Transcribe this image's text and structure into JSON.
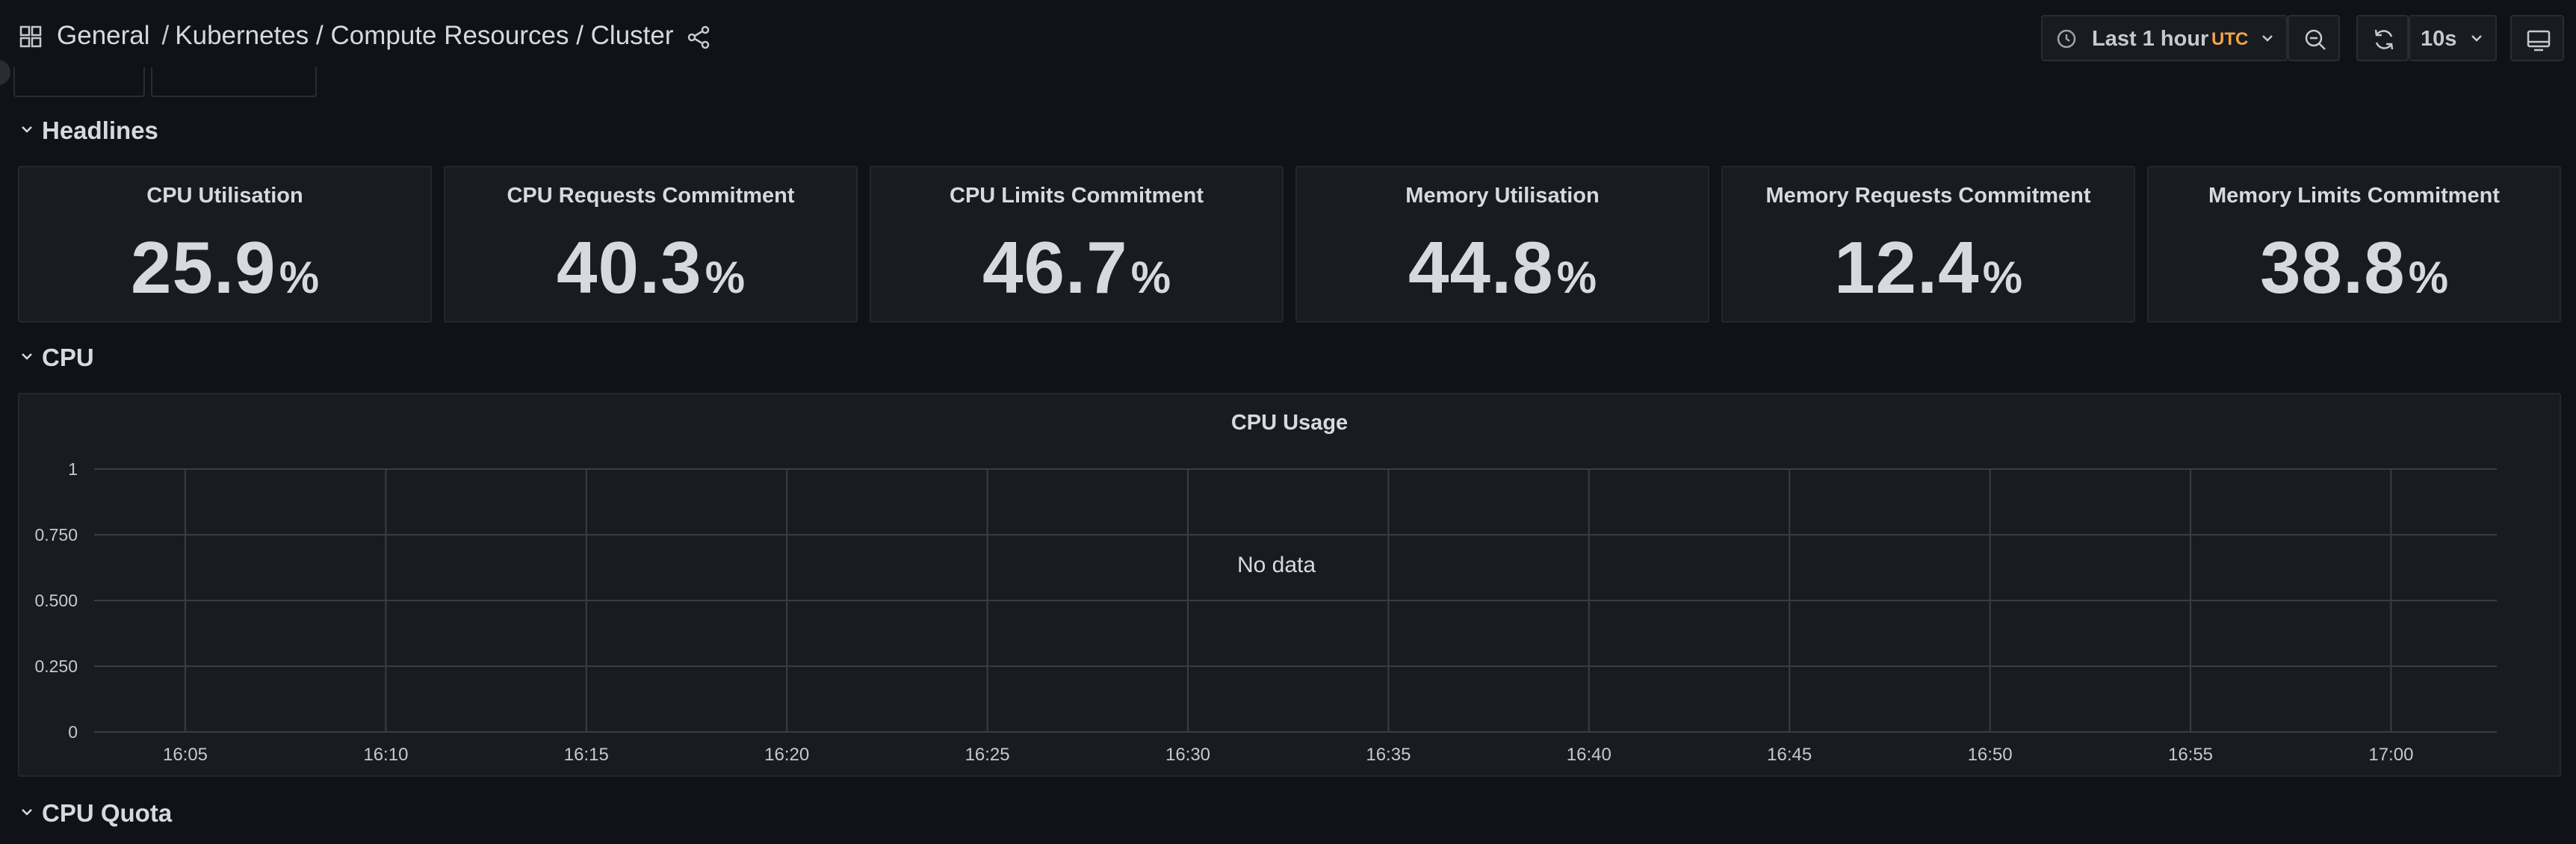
{
  "breadcrumb": {
    "folder": "General",
    "separator": "/",
    "title": "Kubernetes / Compute Resources / Cluster"
  },
  "toolbar": {
    "time_range_label": "Last 1 hour",
    "timezone": "UTC",
    "refresh_interval": "10s",
    "icons": [
      "apps-icon",
      "share-icon",
      "clock-icon",
      "zoom-out-icon",
      "refresh-icon",
      "kiosk-icon"
    ]
  },
  "colors": {
    "background": "#111217",
    "panel": "#181b1f",
    "text": "#d8d9e0",
    "accent_timezone": "#f5a34a",
    "grid": "#3a3d45"
  },
  "rows": {
    "headlines": "Headlines",
    "cpu": "CPU",
    "cpu_quota": "CPU Quota"
  },
  "stats": [
    {
      "title": "CPU Utilisation",
      "value": "25.9",
      "unit": "%"
    },
    {
      "title": "CPU Requests Commitment",
      "value": "40.3",
      "unit": "%"
    },
    {
      "title": "CPU Limits Commitment",
      "value": "46.7",
      "unit": "%"
    },
    {
      "title": "Memory Utilisation",
      "value": "44.8",
      "unit": "%"
    },
    {
      "title": "Memory Requests Commitment",
      "value": "12.4",
      "unit": "%"
    },
    {
      "title": "Memory Limits Commitment",
      "value": "38.8",
      "unit": "%"
    }
  ],
  "cpu_panel": {
    "no_data": "No data"
  },
  "chart_data": {
    "type": "line",
    "title": "CPU Usage",
    "series": [],
    "x": [
      "16:05",
      "16:10",
      "16:15",
      "16:20",
      "16:25",
      "16:30",
      "16:35",
      "16:40",
      "16:45",
      "16:50",
      "16:55",
      "17:00"
    ],
    "y_ticks": [
      "1",
      "0.750",
      "0.500",
      "0.250",
      "0"
    ],
    "ylim": [
      0,
      1
    ],
    "grid": true,
    "xlabel": "",
    "ylabel": ""
  }
}
